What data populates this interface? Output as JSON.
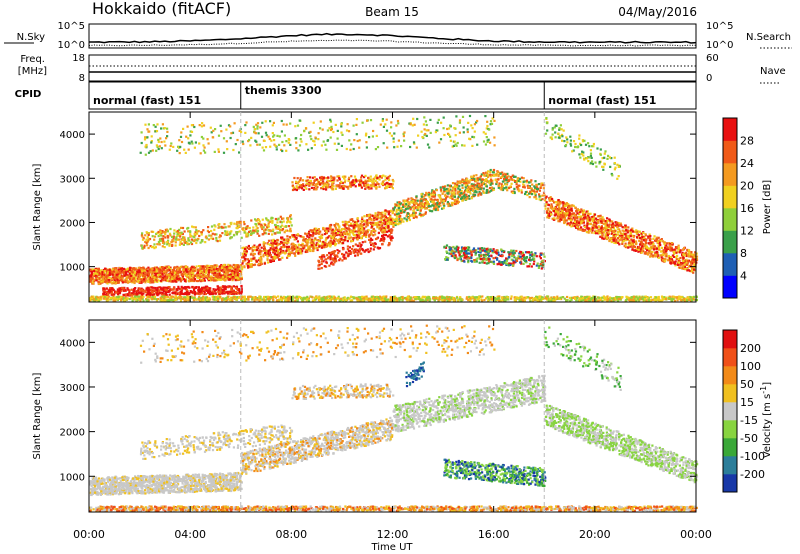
{
  "header": {
    "station": "Hokkaido (fitACF)",
    "beam": "Beam 15",
    "date": "04/May/2016"
  },
  "labels": {
    "nsky": "N.Sky",
    "nsearch": "N.Search",
    "freq_line1": "Freq.",
    "freq_line2": "[MHz]",
    "nave": "Nave",
    "cpid": "CPID",
    "nsky_tick_hi": "10^5",
    "nsky_tick_lo": "10^0",
    "freq_tick_hi": "18",
    "freq_tick_lo": "8",
    "nave_tick_hi": "60",
    "nave_tick_lo": "0"
  },
  "cpid_segments": [
    {
      "name": "normal (fast) 151",
      "start_hour": 0
    },
    {
      "name": "themis 3300",
      "start_hour": 6
    },
    {
      "name": "normal (fast) 151",
      "start_hour": 18
    }
  ],
  "chart_data": [
    {
      "type": "heatmap",
      "panel": "power",
      "ylabel": "Slant Range [km]",
      "xlabel": "",
      "colorbar_label": "Power [dB]",
      "colorbar_ticks": [
        "4",
        "8",
        "12",
        "16",
        "20",
        "24",
        "28"
      ],
      "xlim_hours": [
        0,
        24
      ],
      "ylim_km": [
        200,
        4500
      ],
      "yticks": [
        "1000",
        "2000",
        "3000",
        "4000"
      ],
      "colors": [
        "#0000ff",
        "#1e5fb4",
        "#3aa04a",
        "#8fcf3a",
        "#f0d020",
        "#f49a20",
        "#f05a18",
        "#e81010"
      ]
    },
    {
      "type": "heatmap",
      "panel": "velocity",
      "ylabel": "Slant Range [km]",
      "xlabel": "Time UT",
      "colorbar_label": "Velocity [m s",
      "colorbar_label_sup": "-1",
      "colorbar_label_end": "]",
      "colorbar_ticks": [
        "200",
        "100",
        "50",
        "15",
        "-15",
        "-50",
        "-100",
        "-200"
      ],
      "xticks": [
        "00:00",
        "04:00",
        "08:00",
        "12:00",
        "16:00",
        "20:00",
        "00:00"
      ],
      "xlim_hours": [
        0,
        24
      ],
      "ylim_km": [
        200,
        4500
      ],
      "yticks": [
        "1000",
        "2000",
        "3000",
        "4000"
      ],
      "colors": [
        "#1838a8",
        "#2c7e9a",
        "#3aa838",
        "#88d440",
        "#c8c8c8",
        "#f0c020",
        "#f28a18",
        "#f05018",
        "#e01010"
      ]
    }
  ]
}
